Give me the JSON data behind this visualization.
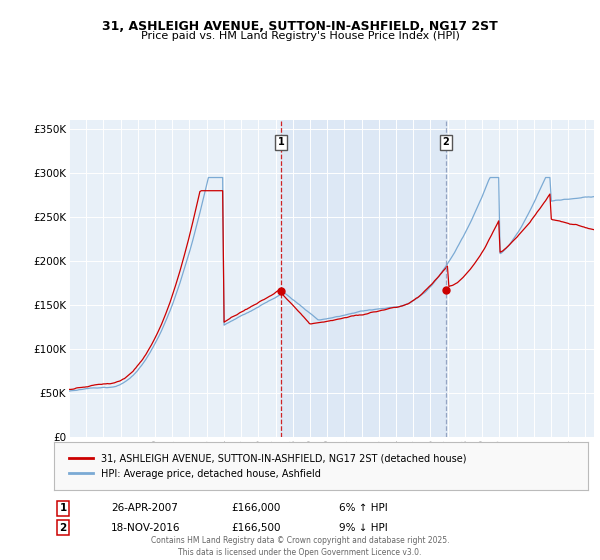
{
  "title_line1": "31, ASHLEIGH AVENUE, SUTTON-IN-ASHFIELD, NG17 2ST",
  "title_line2": "Price paid vs. HM Land Registry's House Price Index (HPI)",
  "background_color": "#e8f0f8",
  "grid_color": "#ffffff",
  "ylim": [
    0,
    360000
  ],
  "yticks": [
    0,
    50000,
    100000,
    150000,
    200000,
    250000,
    300000,
    350000
  ],
  "ytick_labels": [
    "£0",
    "£50K",
    "£100K",
    "£150K",
    "£200K",
    "£250K",
    "£300K",
    "£350K"
  ],
  "xlim_start": 1995.0,
  "xlim_end": 2025.5,
  "sale1_x": 2007.32,
  "sale1_y": 166000,
  "sale1_label": "1",
  "sale2_x": 2016.88,
  "sale2_y": 166500,
  "sale2_label": "2",
  "legend_entries": [
    "31, ASHLEIGH AVENUE, SUTTON-IN-ASHFIELD, NG17 2ST (detached house)",
    "HPI: Average price, detached house, Ashfield"
  ],
  "line_colors": [
    "#cc0000",
    "#7baad4"
  ],
  "shade_between_sales_color": "#dde8f5",
  "table_rows": [
    {
      "num": "1",
      "date": "26-APR-2007",
      "price": "£166,000",
      "pct": "6% ↑ HPI"
    },
    {
      "num": "2",
      "date": "18-NOV-2016",
      "price": "£166,500",
      "pct": "9% ↓ HPI"
    }
  ],
  "footer_text": "Contains HM Land Registry data © Crown copyright and database right 2025.\nThis data is licensed under the Open Government Licence v3.0."
}
